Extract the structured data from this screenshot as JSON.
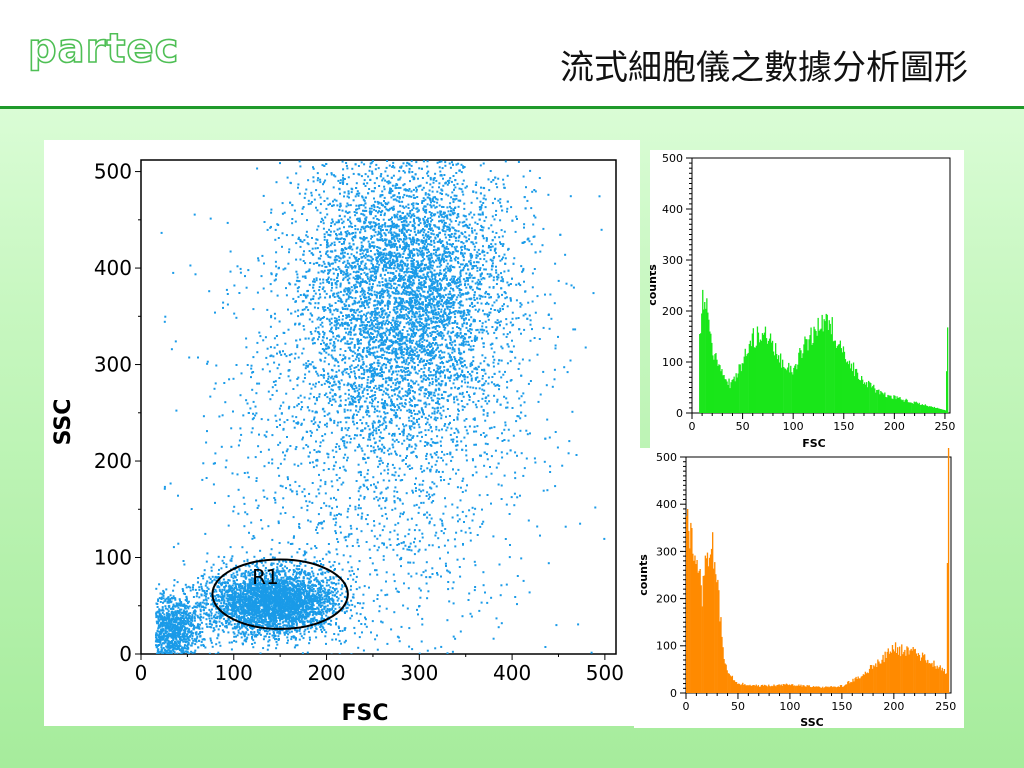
{
  "header": {
    "brand": "partec",
    "title": "流式細胞儀之數據分析圖形"
  },
  "chart_data": [
    {
      "type": "scatter",
      "xlabel": "FSC",
      "ylabel": "SSC",
      "xlim": [
        0,
        512
      ],
      "ylim": [
        0,
        512
      ],
      "x_ticks": [
        0,
        100,
        200,
        300,
        400,
        500
      ],
      "y_ticks": [
        0,
        100,
        200,
        300,
        400,
        500
      ],
      "point_color": "#1a9be8",
      "populations": [
        {
          "center": [
            140,
            55
          ],
          "spread": [
            35,
            17
          ],
          "count": 3500
        },
        {
          "center": [
            30,
            25
          ],
          "spread": [
            18,
            18
          ],
          "count": 1300
        },
        {
          "center": [
            285,
            380
          ],
          "spread": [
            55,
            75
          ],
          "count": 6000
        },
        {
          "center": [
            250,
            220
          ],
          "spread": [
            85,
            120
          ],
          "count": 2000
        }
      ],
      "gate": {
        "label": "R1",
        "center": [
          150,
          62
        ],
        "radii": [
          73,
          36
        ]
      }
    },
    {
      "type": "bar",
      "xlabel": "FSC",
      "ylabel": "counts",
      "xlim": [
        0,
        255
      ],
      "ylim": [
        0,
        500
      ],
      "x_ticks": [
        0,
        50,
        100,
        150,
        200,
        250
      ],
      "y_ticks": [
        0,
        100,
        200,
        300,
        400,
        500
      ],
      "color": "#19e619",
      "x": [
        7,
        10,
        15,
        20,
        30,
        38,
        45,
        60,
        70,
        78,
        90,
        100,
        110,
        122,
        132,
        140,
        150,
        170,
        190,
        210,
        230,
        245,
        250,
        252
      ],
      "values": [
        150,
        215,
        195,
        120,
        70,
        55,
        80,
        145,
        160,
        140,
        90,
        85,
        130,
        165,
        180,
        160,
        110,
        60,
        35,
        25,
        15,
        8,
        5,
        185
      ]
    },
    {
      "type": "bar",
      "xlabel": "SSC",
      "ylabel": "counts",
      "xlim": [
        0,
        255
      ],
      "ylim": [
        0,
        500
      ],
      "x_ticks": [
        0,
        50,
        100,
        150,
        200,
        250
      ],
      "y_ticks": [
        0,
        100,
        200,
        300,
        400,
        500
      ],
      "color": "#ff8a00",
      "x": [
        0,
        2,
        5,
        10,
        15,
        20,
        25,
        30,
        35,
        40,
        50,
        70,
        100,
        130,
        150,
        170,
        190,
        200,
        210,
        220,
        230,
        245,
        250,
        252
      ],
      "values": [
        380,
        355,
        310,
        260,
        210,
        300,
        305,
        230,
        90,
        40,
        20,
        15,
        18,
        12,
        15,
        40,
        75,
        95,
        90,
        85,
        70,
        55,
        40,
        500
      ]
    }
  ]
}
